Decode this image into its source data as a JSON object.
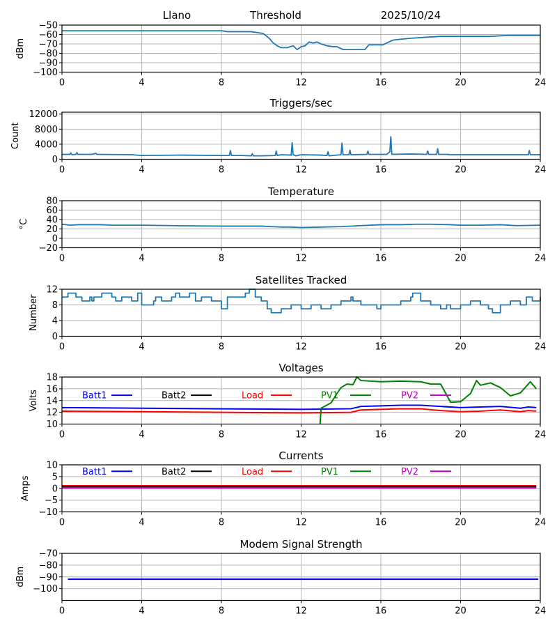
{
  "header": {
    "site": "Llano",
    "label": "Threshold",
    "date": "2025/10/24"
  },
  "chart_data": [
    {
      "id": "threshold",
      "type": "line",
      "title": "",
      "xlabel": "",
      "ylabel": "dBm",
      "xlim": [
        0,
        24
      ],
      "ylim": [
        -100,
        -50
      ],
      "xticks": [
        0,
        4,
        8,
        12,
        16,
        20,
        24
      ],
      "yticks": [
        -100,
        -90,
        -80,
        -70,
        -60,
        -50
      ],
      "ytick_labels": [
        "−100",
        "−90",
        "−80",
        "−70",
        "−60",
        "−50"
      ],
      "grid": true,
      "series": [
        {
          "name": "Threshold",
          "color": "#1f77b4",
          "x": [
            0,
            8.0,
            8.3,
            9.5,
            10.1,
            10.4,
            10.6,
            10.8,
            11.0,
            11.3,
            11.6,
            11.8,
            12.0,
            12.2,
            12.4,
            12.6,
            12.8,
            13.0,
            13.3,
            13.6,
            13.8,
            14.0,
            14.1,
            14.3,
            15.2,
            15.4,
            15.6,
            16.1,
            16.3,
            16.6,
            17.0,
            17.5,
            18.2,
            19.0,
            21.5,
            22.3,
            24
          ],
          "y": [
            -56,
            -56,
            -57,
            -57,
            -59,
            -64,
            -69,
            -72,
            -74,
            -74,
            -72,
            -76,
            -73,
            -72,
            -68,
            -69,
            -68,
            -70,
            -72,
            -73,
            -73,
            -75,
            -76,
            -76,
            -76,
            -71,
            -71,
            -71,
            -69,
            -66,
            -65,
            -64,
            -63,
            -62,
            -62,
            -61,
            -61
          ]
        }
      ]
    },
    {
      "id": "triggers",
      "type": "line",
      "title": "Triggers/sec",
      "xlabel": "",
      "ylabel": "Count",
      "xlim": [
        0,
        24
      ],
      "ylim": [
        0,
        12500
      ],
      "xticks": [
        0,
        4,
        8,
        12,
        16,
        20,
        24
      ],
      "yticks": [
        0,
        4000,
        8000,
        12000
      ],
      "ytick_labels": [
        "0",
        "4000",
        "8000",
        "12000"
      ],
      "grid": true,
      "series": [
        {
          "name": "Triggers",
          "color": "#1f77b4",
          "x": [
            0,
            0.4,
            0.45,
            0.5,
            0.7,
            0.75,
            0.8,
            1.5,
            1.7,
            1.75,
            1.8,
            3.5,
            4.0,
            6.0,
            8.0,
            8.4,
            8.45,
            8.5,
            9.0,
            9.5,
            9.55,
            9.6,
            10.0,
            10.7,
            10.75,
            10.8,
            11.0,
            11.5,
            11.55,
            11.6,
            11.75,
            12.0,
            13.0,
            13.3,
            13.35,
            13.4,
            14.0,
            14.05,
            14.1,
            14.4,
            14.45,
            14.5,
            15.3,
            15.35,
            15.4,
            16.3,
            16.45,
            16.5,
            16.55,
            17.5,
            18.3,
            18.35,
            18.4,
            18.8,
            18.85,
            18.9,
            19.4,
            19.45,
            19.5,
            20.0,
            23.4,
            23.45,
            23.5,
            24
          ],
          "y": [
            1300,
            1300,
            1700,
            1200,
            1300,
            1800,
            1300,
            1300,
            1600,
            1300,
            1300,
            1200,
            1000,
            1100,
            1000,
            1000,
            2300,
            1000,
            1000,
            900,
            1500,
            900,
            900,
            1000,
            2200,
            1000,
            1200,
            1100,
            4400,
            1200,
            900,
            1200,
            1100,
            1000,
            2000,
            900,
            1200,
            4300,
            1200,
            1200,
            2400,
            1200,
            1300,
            2200,
            1300,
            1300,
            2000,
            6000,
            1300,
            1400,
            1300,
            2200,
            1300,
            1300,
            2800,
            1300,
            1300,
            1200,
            1200,
            1200,
            1200,
            2300,
            1200,
            1200
          ]
        }
      ]
    },
    {
      "id": "temperature",
      "type": "line",
      "title": "Temperature",
      "xlabel": "",
      "ylabel": "°C",
      "xlim": [
        0,
        24
      ],
      "ylim": [
        -20,
        80
      ],
      "xticks": [
        0,
        4,
        8,
        12,
        16,
        20,
        24
      ],
      "yticks": [
        -20,
        0,
        20,
        40,
        60,
        80
      ],
      "ytick_labels": [
        "−20",
        "0",
        "20",
        "40",
        "60",
        "80"
      ],
      "grid": true,
      "series": [
        {
          "name": "Temperature",
          "color": "#1f77b4",
          "x": [
            0,
            0.4,
            0.8,
            2.0,
            2.5,
            3.0,
            4.0,
            5.5,
            8.0,
            9.0,
            10.0,
            11.0,
            11.5,
            12.0,
            13.0,
            14.0,
            15.0,
            16.0,
            17.0,
            17.8,
            18.5,
            19.5,
            20.0,
            21.0,
            22.0,
            22.8,
            24
          ],
          "y": [
            30,
            28,
            29,
            29,
            28,
            28,
            28,
            27,
            26,
            26,
            26,
            24,
            24,
            23,
            24,
            25,
            27,
            29,
            29,
            30,
            30,
            29,
            28,
            28,
            29,
            27,
            28
          ]
        }
      ]
    },
    {
      "id": "satellites",
      "type": "line",
      "title": "Satellites Tracked",
      "xlabel": "",
      "ylabel": "Number",
      "xlim": [
        0,
        24
      ],
      "ylim": [
        0,
        12
      ],
      "xticks": [
        0,
        4,
        8,
        12,
        16,
        20,
        24
      ],
      "yticks": [
        0,
        4,
        8,
        12
      ],
      "ytick_labels": [
        "0",
        "4",
        "8",
        "12"
      ],
      "grid": true,
      "series": [
        {
          "name": "Satellites",
          "color": "#1f77b4",
          "step": true,
          "x": [
            0,
            0.3,
            0.7,
            1.0,
            1.4,
            1.5,
            1.6,
            2.0,
            2.5,
            2.7,
            3.0,
            3.5,
            3.8,
            4.0,
            4.6,
            4.7,
            5.0,
            5.5,
            5.7,
            5.9,
            6.4,
            6.7,
            7.0,
            7.5,
            8.0,
            8.3,
            8.5,
            9.2,
            9.4,
            9.7,
            10.0,
            10.3,
            10.5,
            11.0,
            11.5,
            12.0,
            12.5,
            13.0,
            13.5,
            14.0,
            14.5,
            14.6,
            15.0,
            15.5,
            15.8,
            16.0,
            16.5,
            17.0,
            17.5,
            17.6,
            18.0,
            18.5,
            19.0,
            19.3,
            19.5,
            20.0,
            20.5,
            21.0,
            21.4,
            21.6,
            22.0,
            22.5,
            23.0,
            23.3,
            23.6,
            24
          ],
          "y": [
            10,
            11,
            10,
            9,
            10,
            9,
            10,
            11,
            10,
            9,
            10,
            9,
            11,
            8,
            9,
            10,
            9,
            10,
            11,
            10,
            11,
            9,
            10,
            9,
            7,
            10,
            10,
            11,
            12,
            10,
            9,
            7,
            6,
            7,
            8,
            7,
            8,
            7,
            8,
            9,
            10,
            9,
            8,
            8,
            7,
            8,
            8,
            9,
            10,
            11,
            9,
            8,
            7,
            8,
            7,
            8,
            9,
            8,
            7,
            6,
            8,
            9,
            8,
            10,
            9,
            10
          ]
        }
      ]
    },
    {
      "id": "voltages",
      "type": "line",
      "title": "Voltages",
      "xlabel": "",
      "ylabel": "Volts",
      "xlim": [
        0,
        24
      ],
      "ylim": [
        10,
        18
      ],
      "xticks": [
        0,
        4,
        8,
        12,
        16,
        20,
        24
      ],
      "yticks": [
        10,
        12,
        14,
        16,
        18
      ],
      "ytick_labels": [
        "10",
        "12",
        "14",
        "16",
        "18"
      ],
      "grid": true,
      "legend": "top-inline",
      "series": [
        {
          "name": "Batt1",
          "color": "#0000ff",
          "x": [
            0,
            4,
            8,
            12,
            14.5,
            15.0,
            16.0,
            17.0,
            18.0,
            19.0,
            20.0,
            21.0,
            22.0,
            23.0,
            23.4,
            23.8
          ],
          "y": [
            12.8,
            12.7,
            12.6,
            12.5,
            12.6,
            13.0,
            13.1,
            13.2,
            13.2,
            13.0,
            12.8,
            12.9,
            13.0,
            12.7,
            12.9,
            12.8
          ]
        },
        {
          "name": "Batt2",
          "color": "#000000",
          "x": [],
          "y": []
        },
        {
          "name": "Load",
          "color": "#ff0000",
          "x": [
            0,
            4,
            8,
            12,
            14.5,
            15.0,
            16.0,
            17.0,
            18.0,
            19.0,
            20.0,
            21.0,
            22.0,
            23.0,
            23.4,
            23.8
          ],
          "y": [
            12.2,
            12.1,
            12.0,
            11.9,
            12.0,
            12.4,
            12.5,
            12.6,
            12.6,
            12.3,
            12.1,
            12.2,
            12.4,
            12.1,
            12.3,
            12.2
          ]
        },
        {
          "name": "PV1",
          "color": "#008000",
          "x": [
            12.95,
            13.0,
            13.5,
            13.8,
            14.0,
            14.3,
            14.6,
            14.8,
            15.0,
            16.0,
            17.0,
            18.0,
            18.5,
            19.0,
            19.5,
            20.0,
            20.5,
            20.8,
            21.0,
            21.5,
            22.0,
            22.5,
            23.0,
            23.5,
            23.8
          ],
          "y": [
            10,
            12.7,
            13.6,
            15.2,
            16.2,
            16.8,
            16.7,
            18.0,
            17.4,
            17.2,
            17.3,
            17.2,
            16.8,
            16.8,
            13.7,
            13.8,
            15.2,
            17.4,
            16.6,
            17.0,
            16.2,
            14.8,
            15.3,
            17.2,
            16.0
          ]
        },
        {
          "name": "PV2",
          "color": "#bf00bf",
          "x": [],
          "y": []
        }
      ]
    },
    {
      "id": "currents",
      "type": "line",
      "title": "Currents",
      "xlabel": "",
      "ylabel": "Amps",
      "xlim": [
        0,
        24
      ],
      "ylim": [
        -10,
        10
      ],
      "xticks": [
        0,
        4,
        8,
        12,
        16,
        20,
        24
      ],
      "yticks": [
        -10,
        -5,
        0,
        5,
        10
      ],
      "ytick_labels": [
        "−10",
        "−5",
        "0",
        "5",
        "10"
      ],
      "grid": true,
      "legend": "top-inline",
      "series": [
        {
          "name": "Batt1",
          "color": "#0000ff",
          "x": [],
          "y": []
        },
        {
          "name": "Batt2",
          "color": "#000000",
          "x": [
            0,
            23.8
          ],
          "y": [
            0.7,
            0.7
          ]
        },
        {
          "name": "Load",
          "color": "#ff0000",
          "x": [
            0,
            4,
            8,
            12,
            16,
            20,
            23.8
          ],
          "y": [
            1.1,
            1.1,
            1.1,
            1.1,
            1.1,
            1.1,
            1.1
          ]
        },
        {
          "name": "PV1",
          "color": "#008000",
          "x": [],
          "y": []
        },
        {
          "name": "PV2",
          "color": "#bf00bf",
          "x": [
            0,
            23.8
          ],
          "y": [
            0.2,
            0.2
          ]
        }
      ]
    },
    {
      "id": "modem",
      "type": "line",
      "title": "Modem Signal Strength",
      "xlabel": "",
      "ylabel": "dBm",
      "xlim": [
        0,
        24
      ],
      "ylim": [
        -110,
        -70
      ],
      "xticks": [
        0,
        4,
        8,
        12,
        16,
        20,
        24
      ],
      "yticks": [
        -100,
        -90,
        -80,
        -70
      ],
      "ytick_labels": [
        "−100",
        "−90",
        "−80",
        "−70"
      ],
      "grid": true,
      "series": [
        {
          "name": "Modem",
          "color": "#0000ff",
          "x": [
            0.3,
            23.9
          ],
          "y": [
            -92,
            -92
          ]
        }
      ]
    }
  ]
}
